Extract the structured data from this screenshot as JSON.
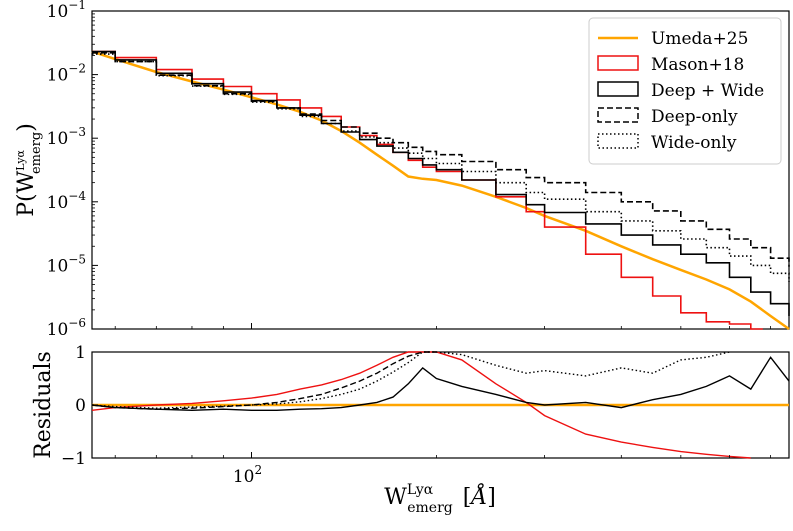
{
  "chart_data": [
    {
      "type": "line",
      "panel": "main",
      "ylabel": "P(W^{Lyα}_{emerg})",
      "xscale": "log",
      "yscale": "log",
      "xlim": [
        55,
        750
      ],
      "ylim": [
        1e-06,
        0.1
      ],
      "yticks": [
        {
          "value": 1e-06,
          "base": "10",
          "exp": "−6"
        },
        {
          "value": 1e-05,
          "base": "10",
          "exp": "−5"
        },
        {
          "value": 0.0001,
          "base": "10",
          "exp": "−4"
        },
        {
          "value": 0.001,
          "base": "10",
          "exp": "−3"
        },
        {
          "value": 0.01,
          "base": "10",
          "exp": "−2"
        },
        {
          "value": 0.1,
          "base": "10",
          "exp": "−1"
        }
      ],
      "legend_position": "top-right",
      "series": [
        {
          "name": "Umeda+25",
          "style": "solid-orange",
          "color": "#FFA500",
          "x": [
            55,
            60,
            70,
            80,
            90,
            100,
            110,
            120,
            130,
            140,
            150,
            160,
            170,
            180,
            190,
            200,
            220,
            250,
            280,
            300,
            350,
            400,
            450,
            500,
            550,
            600,
            650,
            700,
            750
          ],
          "y": [
            0.023,
            0.0175,
            0.011,
            0.0078,
            0.0058,
            0.0044,
            0.0034,
            0.0026,
            0.0019,
            0.0013,
            0.00085,
            0.00055,
            0.00037,
            0.00025,
            0.00023,
            0.00022,
            0.00018,
            0.00012,
            8e-05,
            6e-05,
            3.5e-05,
            2e-05,
            1.25e-05,
            8.5e-06,
            6e-06,
            4.2e-06,
            2.7e-06,
            1.6e-06,
            9e-07
          ]
        },
        {
          "name": "Mason+18",
          "style": "step-red",
          "color": "#EE1111",
          "x": [
            55,
            60,
            70,
            80,
            90,
            100,
            110,
            120,
            130,
            140,
            150,
            160,
            170,
            180,
            190,
            200,
            220,
            250,
            280,
            300,
            350,
            400,
            450,
            500,
            550,
            600,
            650
          ],
          "y": [
            0.023,
            0.0185,
            0.012,
            0.0085,
            0.0065,
            0.005,
            0.004,
            0.003,
            0.0022,
            0.0015,
            0.0011,
            0.0008,
            0.0006,
            0.00045,
            0.00035,
            0.0003,
            0.00022,
            0.00012,
            7e-05,
            4e-05,
            1.5e-05,
            6.5e-06,
            3.3e-06,
            1.8e-06,
            1.3e-06,
            1.2e-06,
            9e-07
          ]
        },
        {
          "name": "Deep + Wide",
          "style": "step-black",
          "color": "#000000",
          "x": [
            55,
            60,
            70,
            80,
            90,
            100,
            110,
            120,
            130,
            140,
            150,
            160,
            170,
            180,
            190,
            200,
            220,
            250,
            280,
            300,
            350,
            400,
            450,
            500,
            550,
            600,
            650,
            700,
            750
          ],
          "y": [
            0.023,
            0.017,
            0.0105,
            0.0072,
            0.0053,
            0.0039,
            0.003,
            0.0023,
            0.0017,
            0.00125,
            0.00095,
            0.00075,
            0.0006,
            0.00048,
            0.00038,
            0.00032,
            0.00022,
            0.00013,
            9e-05,
            6.8e-05,
            4.5e-05,
            3e-05,
            2.1e-05,
            1.5e-05,
            1.1e-05,
            6.5e-06,
            3.8e-06,
            2.5e-06,
            1.6e-06
          ]
        },
        {
          "name": "Deep-only",
          "style": "dashed-black",
          "color": "#000000",
          "x": [
            55,
            60,
            70,
            80,
            90,
            100,
            110,
            120,
            130,
            140,
            150,
            160,
            170,
            180,
            190,
            200,
            220,
            250,
            280,
            300,
            350,
            400,
            450,
            500,
            550,
            600,
            650,
            700,
            750
          ],
          "y": [
            0.022,
            0.016,
            0.0098,
            0.0067,
            0.005,
            0.0038,
            0.003,
            0.0024,
            0.0019,
            0.0015,
            0.0012,
            0.001,
            0.00085,
            0.00072,
            0.00062,
            0.00055,
            0.00043,
            0.00032,
            0.00024,
            0.0002,
            0.00014,
            0.0001,
            7.2e-05,
            5e-05,
            3.7e-05,
            2.6e-05,
            1.9e-05,
            1.3e-05,
            9.5e-06
          ]
        },
        {
          "name": "Wide-only",
          "style": "dotted-black",
          "color": "#000000",
          "x": [
            55,
            60,
            70,
            80,
            90,
            100,
            110,
            120,
            130,
            140,
            150,
            160,
            170,
            180,
            190,
            200,
            220,
            250,
            280,
            300,
            350,
            400,
            450,
            500,
            550,
            600,
            650,
            700,
            750
          ],
          "y": [
            0.021,
            0.016,
            0.0096,
            0.0066,
            0.0049,
            0.0037,
            0.0029,
            0.0022,
            0.0017,
            0.0013,
            0.00105,
            0.00085,
            0.0007,
            0.00058,
            0.00048,
            0.0004,
            0.0003,
            0.0002,
            0.00014,
            0.00011,
            7e-05,
            5e-05,
            3.5e-05,
            2.6e-05,
            1.9e-05,
            1.4e-05,
            1e-05,
            7.5e-06,
            5.5e-06
          ]
        }
      ]
    },
    {
      "type": "line",
      "panel": "residuals",
      "ylabel": "Residuals",
      "xlabel": "W^{Lyα}_{emerg} [Å]",
      "xscale": "log",
      "xlim": [
        55,
        750
      ],
      "ylim": [
        -1,
        1
      ],
      "yticks": [
        -1,
        0,
        1
      ],
      "ytick_labels": [
        "−1",
        "0",
        "1"
      ],
      "xticks": [
        {
          "value": 100,
          "base": "10",
          "exp": "2"
        }
      ],
      "series": [
        {
          "name": "Umeda+25",
          "color": "#FFA500",
          "x": [
            55,
            750
          ],
          "y": [
            0,
            0
          ]
        },
        {
          "name": "Mason+18",
          "color": "#EE1111",
          "x": [
            55,
            60,
            70,
            80,
            90,
            100,
            110,
            120,
            130,
            140,
            150,
            160,
            170,
            180,
            190,
            200,
            220,
            250,
            280,
            300,
            350,
            400,
            450,
            500,
            550,
            600,
            650
          ],
          "y": [
            -0.1,
            -0.05,
            0.0,
            0.03,
            0.08,
            0.13,
            0.2,
            0.3,
            0.38,
            0.48,
            0.6,
            0.75,
            0.9,
            1.0,
            1.0,
            1.0,
            0.85,
            0.4,
            0.05,
            -0.2,
            -0.55,
            -0.7,
            -0.8,
            -0.88,
            -0.93,
            -0.97,
            -1.0
          ]
        },
        {
          "name": "Deep + Wide",
          "color": "#000000",
          "x": [
            55,
            60,
            70,
            80,
            90,
            100,
            110,
            120,
            130,
            140,
            150,
            160,
            170,
            180,
            190,
            200,
            220,
            250,
            280,
            300,
            350,
            400,
            450,
            500,
            550,
            600,
            650,
            700,
            750
          ],
          "y": [
            0.0,
            -0.05,
            -0.08,
            -0.1,
            -0.08,
            -0.1,
            -0.1,
            -0.08,
            -0.07,
            -0.05,
            0.0,
            0.05,
            0.15,
            0.4,
            0.7,
            0.5,
            0.35,
            0.2,
            0.05,
            0.0,
            0.05,
            -0.05,
            0.1,
            0.2,
            0.35,
            0.55,
            0.3,
            0.9,
            0.45
          ]
        },
        {
          "name": "Deep-only",
          "color": "#000000",
          "dash": "dashed",
          "x": [
            55,
            60,
            70,
            80,
            90,
            100,
            110,
            120,
            130,
            140,
            150,
            160,
            170,
            180,
            190,
            200
          ],
          "y": [
            0.0,
            -0.05,
            -0.08,
            -0.06,
            -0.03,
            0.0,
            0.05,
            0.12,
            0.2,
            0.32,
            0.45,
            0.6,
            0.78,
            0.92,
            1.0,
            1.0
          ]
        },
        {
          "name": "Wide-only",
          "color": "#000000",
          "dash": "dotted",
          "x": [
            55,
            60,
            70,
            80,
            90,
            100,
            110,
            120,
            130,
            140,
            150,
            160,
            170,
            180,
            190,
            200,
            220,
            250,
            280,
            300,
            350,
            400,
            450,
            500,
            550,
            600
          ],
          "y": [
            0.0,
            -0.03,
            -0.06,
            -0.04,
            -0.02,
            0.0,
            0.02,
            0.06,
            0.12,
            0.2,
            0.3,
            0.45,
            0.62,
            0.8,
            1.0,
            1.0,
            0.95,
            0.75,
            0.6,
            0.65,
            0.55,
            0.7,
            0.6,
            0.85,
            0.9,
            1.0
          ]
        }
      ]
    }
  ]
}
